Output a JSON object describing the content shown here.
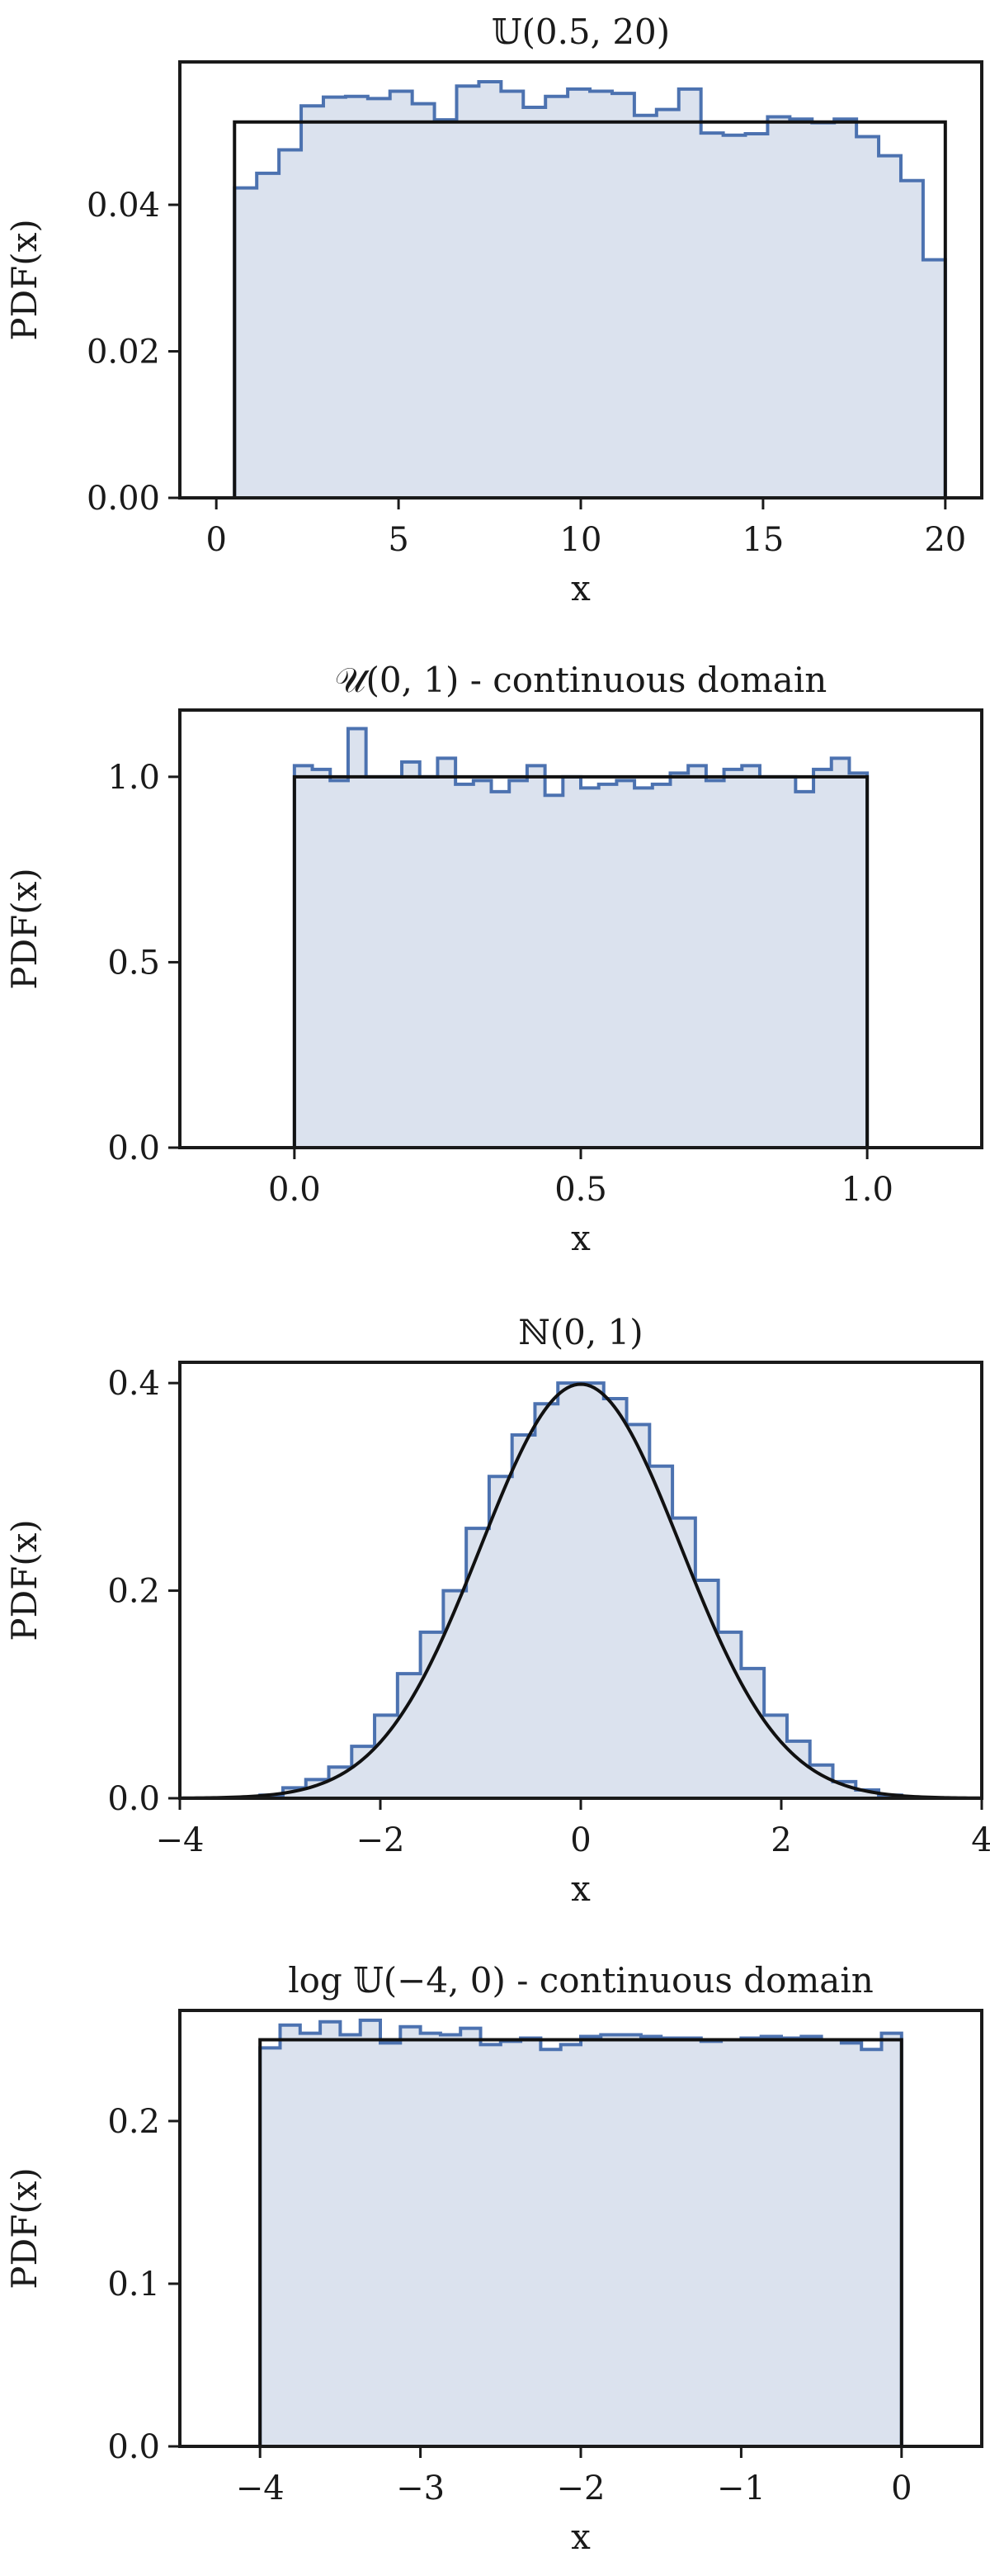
{
  "chart_data": [
    {
      "type": "histogram",
      "title": "𝕌(0.5, 20)",
      "xlabel": "x",
      "ylabel": "PDF(x)",
      "xlim": [
        -1,
        21
      ],
      "ylim": [
        0,
        0.0595
      ],
      "xticks": [
        0,
        5,
        10,
        15,
        20
      ],
      "xtick_labels": [
        "0",
        "5",
        "10",
        "15",
        "20"
      ],
      "yticks": [
        0,
        0.02,
        0.04
      ],
      "ytick_labels": [
        "0.00",
        "0.02",
        "0.04"
      ],
      "grid": false,
      "histogram": {
        "bin_start": 0.5,
        "bin_end": 20,
        "heights": [
          0.0423,
          0.0443,
          0.0475,
          0.0535,
          0.0547,
          0.0548,
          0.0545,
          0.0555,
          0.0538,
          0.0516,
          0.0562,
          0.0568,
          0.0555,
          0.0533,
          0.0548,
          0.0558,
          0.0555,
          0.0552,
          0.0522,
          0.053,
          0.0558,
          0.0498,
          0.0495,
          0.0497,
          0.052,
          0.0517,
          0.0512,
          0.0517,
          0.0493,
          0.0467,
          0.0433,
          0.0325
        ]
      },
      "reference": {
        "kind": "uniform",
        "x": [
          0.5,
          20
        ],
        "y": 0.0513
      }
    },
    {
      "type": "histogram",
      "title": "𝒰(0, 1) - continuous domain",
      "xlabel": "x",
      "ylabel": "PDF(x)",
      "xlim": [
        -0.2,
        1.2
      ],
      "ylim": [
        0,
        1.18
      ],
      "xticks": [
        0,
        0.5,
        1
      ],
      "xtick_labels": [
        "0.0",
        "0.5",
        "1.0"
      ],
      "yticks": [
        0,
        0.5,
        1
      ],
      "ytick_labels": [
        "0.0",
        "0.5",
        "1.0"
      ],
      "grid": false,
      "histogram": {
        "bin_start": 0,
        "bin_end": 1,
        "heights": [
          1.03,
          1.02,
          0.99,
          1.13,
          1.0,
          1.0,
          1.04,
          1.0,
          1.05,
          0.98,
          0.99,
          0.96,
          0.99,
          1.03,
          0.95,
          1.0,
          0.97,
          0.98,
          0.99,
          0.97,
          0.98,
          1.01,
          1.03,
          0.99,
          1.02,
          1.03,
          1.0,
          1.0,
          0.96,
          1.02,
          1.05,
          1.01
        ]
      },
      "reference": {
        "kind": "uniform",
        "x": [
          0,
          1
        ],
        "y": 1.0
      }
    },
    {
      "type": "histogram",
      "title": "ℕ(0, 1)",
      "xlabel": "x",
      "ylabel": "PDF(x)",
      "xlim": [
        -4,
        4
      ],
      "ylim": [
        0,
        0.42
      ],
      "xticks": [
        -4,
        -2,
        0,
        2,
        4
      ],
      "xtick_labels": [
        "−4",
        "−2",
        "0",
        "2",
        "4"
      ],
      "yticks": [
        0,
        0.2,
        0.4
      ],
      "ytick_labels": [
        "0.0",
        "0.2",
        "0.4"
      ],
      "grid": false,
      "histogram": {
        "bin_start": -3.2,
        "bin_end": 3.2,
        "heights": [
          0.003,
          0.01,
          0.018,
          0.03,
          0.05,
          0.08,
          0.12,
          0.16,
          0.2,
          0.26,
          0.31,
          0.35,
          0.38,
          0.4,
          0.4,
          0.385,
          0.36,
          0.32,
          0.27,
          0.21,
          0.16,
          0.125,
          0.08,
          0.055,
          0.032,
          0.016,
          0.008,
          0.003
        ]
      },
      "reference": {
        "kind": "normal",
        "mean": 0,
        "std": 1
      }
    },
    {
      "type": "histogram",
      "title": "log 𝕌(−4, 0) - continuous domain",
      "xlabel": "x",
      "ylabel": "PDF(x)",
      "xlim": [
        -4.5,
        0.5
      ],
      "ylim": [
        0,
        0.268
      ],
      "xticks": [
        -4,
        -3,
        -2,
        -1,
        0
      ],
      "xtick_labels": [
        "−4",
        "−3",
        "−2",
        "−1",
        "0"
      ],
      "yticks": [
        0,
        0.1,
        0.2
      ],
      "ytick_labels": [
        "0.0",
        "0.1",
        "0.2"
      ],
      "grid": false,
      "histogram": {
        "bin_start": -4,
        "bin_end": 0,
        "heights": [
          0.245,
          0.259,
          0.254,
          0.261,
          0.253,
          0.262,
          0.248,
          0.258,
          0.254,
          0.253,
          0.257,
          0.247,
          0.249,
          0.251,
          0.244,
          0.247,
          0.252,
          0.253,
          0.253,
          0.252,
          0.251,
          0.251,
          0.249,
          0.25,
          0.251,
          0.252,
          0.251,
          0.252,
          0.25,
          0.248,
          0.244,
          0.254
        ]
      },
      "reference": {
        "kind": "uniform",
        "x": [
          -4,
          0
        ],
        "y": 0.25
      }
    }
  ],
  "colors": {
    "hist_fill": "#dbe2ee",
    "hist_edge": "#4c72b0",
    "reference_line": "#111111",
    "axes": "#1a1a1a"
  }
}
